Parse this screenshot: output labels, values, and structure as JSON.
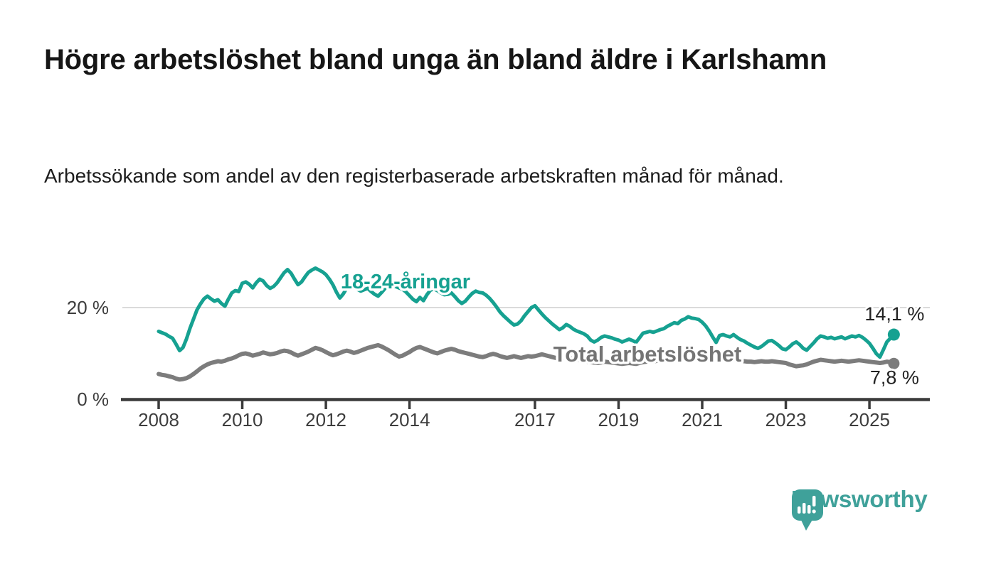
{
  "header": {
    "title": "Högre arbetslöshet bland unga än bland äldre i Karlshamn",
    "subtitle": "Arbetssökande som andel av den registerbaserade arbetskraften månad för månad."
  },
  "branding": {
    "logo_text": "Newsworthy",
    "logo_icon": "bar-chart-speech-bubble",
    "logo_color": "#3fa19a"
  },
  "chart_data": {
    "type": "line",
    "frequency": "monthly",
    "x_start_year": 2008,
    "x_end": "2025-08",
    "unit": "%",
    "decimal_style": "comma",
    "x_tick_years": [
      2008,
      2010,
      2012,
      2014,
      2017,
      2019,
      2021,
      2023,
      2025
    ],
    "y_ticks": [
      {
        "value": 0,
        "label": "0 %"
      },
      {
        "value": 20,
        "label": "20 %"
      }
    ],
    "ylim": [
      0,
      31
    ],
    "grid": "horizontal gridline at 20% only",
    "legend_position": "labels drawn on chart next to lines",
    "colors": {
      "youth": "#16a191",
      "total": "#7c7c7c",
      "gridline": "#dadada",
      "axis": "#3b3b3b"
    },
    "series": [
      {
        "name": "18-24-åringar",
        "color": "#16a191",
        "end_value": 14.1,
        "end_label": "14,1 %",
        "values": [
          14.8,
          14.5,
          14.2,
          13.7,
          13.3,
          12.0,
          10.6,
          11.3,
          13.2,
          15.5,
          17.5,
          19.5,
          20.8,
          21.9,
          22.5,
          21.9,
          21.4,
          21.7,
          20.9,
          20.3,
          21.8,
          23.2,
          23.7,
          23.5,
          25.3,
          25.6,
          25.1,
          24.3,
          25.4,
          26.2,
          25.8,
          24.8,
          24.2,
          24.6,
          25.4,
          26.5,
          27.6,
          28.3,
          27.5,
          26.2,
          25.0,
          25.6,
          26.7,
          27.7,
          28.2,
          28.6,
          28.2,
          27.8,
          27.2,
          26.2,
          25.0,
          23.4,
          22.1,
          23.0,
          24.3,
          24.6,
          24.4,
          24.0,
          23.6,
          23.9,
          24.2,
          23.5,
          22.9,
          22.5,
          23.3,
          24.2,
          24.8,
          25.0,
          24.6,
          24.3,
          24.0,
          23.4,
          22.6,
          21.8,
          21.3,
          22.2,
          21.5,
          22.8,
          23.8,
          24.1,
          23.7,
          23.2,
          22.8,
          22.9,
          23.2,
          22.4,
          21.5,
          20.9,
          21.4,
          22.3,
          23.1,
          23.6,
          23.3,
          23.2,
          22.7,
          22.0,
          21.1,
          20.1,
          19.0,
          18.2,
          17.5,
          16.8,
          16.2,
          16.4,
          17.1,
          18.2,
          19.1,
          20.0,
          20.4,
          19.5,
          18.6,
          17.8,
          17.1,
          16.4,
          15.8,
          15.2,
          15.6,
          16.3,
          15.9,
          15.3,
          14.9,
          14.6,
          14.3,
          13.8,
          12.9,
          12.5,
          12.9,
          13.5,
          13.8,
          13.6,
          13.4,
          13.1,
          12.9,
          12.5,
          12.8,
          13.1,
          12.8,
          12.4,
          13.4,
          14.4,
          14.6,
          14.8,
          14.6,
          14.9,
          15.2,
          15.4,
          15.9,
          16.3,
          16.7,
          16.5,
          17.2,
          17.5,
          18.0,
          17.7,
          17.6,
          17.4,
          16.8,
          16.0,
          14.9,
          13.6,
          12.4,
          13.9,
          14.1,
          13.8,
          13.6,
          14.1,
          13.5,
          13.0,
          12.7,
          12.2,
          11.8,
          11.4,
          11.1,
          11.5,
          12.1,
          12.7,
          12.8,
          12.3,
          11.7,
          11.0,
          10.8,
          11.4,
          12.1,
          12.5,
          11.9,
          11.1,
          10.7,
          11.5,
          12.3,
          13.2,
          13.8,
          13.6,
          13.3,
          13.5,
          13.2,
          13.4,
          13.6,
          13.2,
          13.5,
          13.8,
          13.6,
          13.9,
          13.5,
          12.9,
          12.2,
          11.1,
          9.9,
          9.2,
          10.8,
          12.5,
          13.3,
          14.1
        ]
      },
      {
        "name": "Total arbetslöshet",
        "color": "#7c7c7c",
        "end_value": 7.8,
        "end_label": "7,8 %",
        "values": [
          5.5,
          5.3,
          5.2,
          5.0,
          4.8,
          4.5,
          4.3,
          4.4,
          4.6,
          5.0,
          5.5,
          6.1,
          6.7,
          7.2,
          7.6,
          7.9,
          8.1,
          8.3,
          8.2,
          8.4,
          8.7,
          8.9,
          9.2,
          9.6,
          9.9,
          10.0,
          9.8,
          9.5,
          9.7,
          9.9,
          10.2,
          10.0,
          9.8,
          9.9,
          10.1,
          10.4,
          10.6,
          10.5,
          10.2,
          9.8,
          9.5,
          9.8,
          10.1,
          10.4,
          10.8,
          11.2,
          11.0,
          10.7,
          10.3,
          9.9,
          9.6,
          9.8,
          10.1,
          10.4,
          10.6,
          10.4,
          10.1,
          10.3,
          10.6,
          10.9,
          11.2,
          11.4,
          11.6,
          11.8,
          11.5,
          11.1,
          10.7,
          10.2,
          9.7,
          9.3,
          9.5,
          9.9,
          10.3,
          10.8,
          11.2,
          11.4,
          11.1,
          10.8,
          10.5,
          10.2,
          10.0,
          10.3,
          10.6,
          10.8,
          11.0,
          10.8,
          10.5,
          10.3,
          10.1,
          9.9,
          9.7,
          9.5,
          9.3,
          9.2,
          9.4,
          9.7,
          9.9,
          9.7,
          9.4,
          9.2,
          9.0,
          9.2,
          9.4,
          9.2,
          9.0,
          9.2,
          9.4,
          9.3,
          9.4,
          9.6,
          9.8,
          9.6,
          9.4,
          9.2,
          9.0,
          8.8,
          9.0,
          9.2,
          9.0,
          8.8,
          8.7,
          8.5,
          8.4,
          8.2,
          8.1,
          8.0,
          7.9,
          8.0,
          8.2,
          8.1,
          8.0,
          7.9,
          7.8,
          7.7,
          7.8,
          7.9,
          7.8,
          7.7,
          7.9,
          8.1,
          8.2,
          8.3,
          8.2,
          8.4,
          8.6,
          8.8,
          9.2,
          9.6,
          9.9,
          10.1,
          10.2,
          10.3,
          10.2,
          10.1,
          10.0,
          9.9,
          9.7,
          9.5,
          9.3,
          9.2,
          9.0,
          8.9,
          8.8,
          8.7,
          8.6,
          8.6,
          8.5,
          8.4,
          8.3,
          8.2,
          8.2,
          8.1,
          8.2,
          8.3,
          8.2,
          8.2,
          8.3,
          8.2,
          8.1,
          8.0,
          7.9,
          7.6,
          7.4,
          7.2,
          7.3,
          7.4,
          7.6,
          7.9,
          8.2,
          8.4,
          8.6,
          8.5,
          8.4,
          8.3,
          8.2,
          8.3,
          8.4,
          8.3,
          8.2,
          8.3,
          8.4,
          8.5,
          8.4,
          8.3,
          8.2,
          8.1,
          8.0,
          7.9,
          8.0,
          8.2,
          8.1,
          7.8
        ]
      }
    ]
  }
}
